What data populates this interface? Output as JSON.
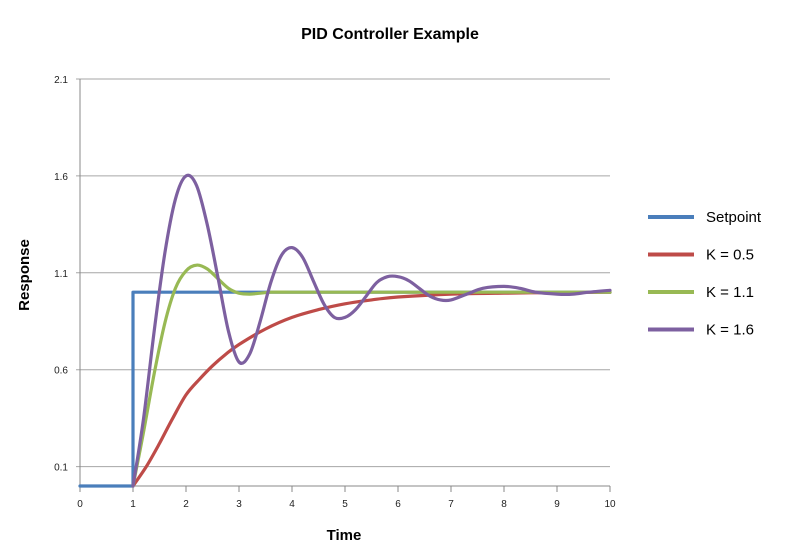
{
  "chart_data": {
    "type": "line",
    "title": "PID Controller Example",
    "xlabel": "Time",
    "ylabel": "Response",
    "xlim": [
      0,
      10
    ],
    "ylim": [
      0,
      2.1
    ],
    "x_ticks": [
      "0",
      "1",
      "2",
      "3",
      "4",
      "5",
      "6",
      "7",
      "8",
      "9",
      "10"
    ],
    "y_ticks": [
      "0.1",
      "0.6",
      "1.1",
      "1.6",
      "2.1"
    ],
    "grid": "horizontal",
    "legend_position": "right",
    "series": [
      {
        "name": "Setpoint",
        "color": "#4a7ebb",
        "x": [
          0,
          1,
          1,
          10
        ],
        "y": [
          0,
          0,
          1,
          1
        ]
      },
      {
        "name": "K = 0.5",
        "color": "#be4b48",
        "x": [
          1,
          1.25,
          1.5,
          1.75,
          2,
          2.25,
          2.5,
          2.75,
          3,
          3.5,
          4,
          4.5,
          5,
          5.5,
          6,
          7,
          8,
          9,
          10
        ],
        "y": [
          0,
          0.1,
          0.22,
          0.35,
          0.47,
          0.55,
          0.62,
          0.68,
          0.73,
          0.81,
          0.87,
          0.91,
          0.94,
          0.96,
          0.975,
          0.99,
          0.995,
          0.998,
          1.0
        ]
      },
      {
        "name": "K = 1.1",
        "color": "#98b954",
        "x": [
          1,
          1.2,
          1.4,
          1.6,
          1.8,
          2,
          2.2,
          2.4,
          2.6,
          2.8,
          3,
          3.2,
          3.4,
          3.6,
          4,
          4.5,
          5,
          6,
          7,
          8,
          9,
          10
        ],
        "y": [
          0,
          0.28,
          0.58,
          0.84,
          1.02,
          1.11,
          1.14,
          1.12,
          1.07,
          1.02,
          0.995,
          0.99,
          0.995,
          1.0,
          1.0,
          1.0,
          1.0,
          1.0,
          1.0,
          1.0,
          1.0,
          1.0
        ]
      },
      {
        "name": "K = 1.6",
        "color": "#7d60a0",
        "x": [
          1,
          1.2,
          1.4,
          1.6,
          1.8,
          2,
          2.2,
          2.4,
          2.6,
          2.8,
          3,
          3.2,
          3.4,
          3.6,
          3.8,
          4,
          4.2,
          4.4,
          4.6,
          4.8,
          5,
          5.2,
          5.4,
          5.6,
          5.8,
          6,
          6.2,
          6.4,
          6.6,
          6.8,
          7,
          7.3,
          7.6,
          8,
          8.3,
          8.6,
          9,
          9.3,
          9.6,
          10
        ],
        "y": [
          0,
          0.35,
          0.8,
          1.2,
          1.48,
          1.6,
          1.55,
          1.35,
          1.08,
          0.8,
          0.64,
          0.68,
          0.85,
          1.05,
          1.19,
          1.23,
          1.18,
          1.06,
          0.94,
          0.87,
          0.87,
          0.91,
          0.98,
          1.05,
          1.08,
          1.08,
          1.06,
          1.02,
          0.98,
          0.96,
          0.96,
          0.99,
          1.02,
          1.03,
          1.02,
          1.0,
          0.99,
          0.99,
          1.0,
          1.01
        ]
      }
    ]
  }
}
